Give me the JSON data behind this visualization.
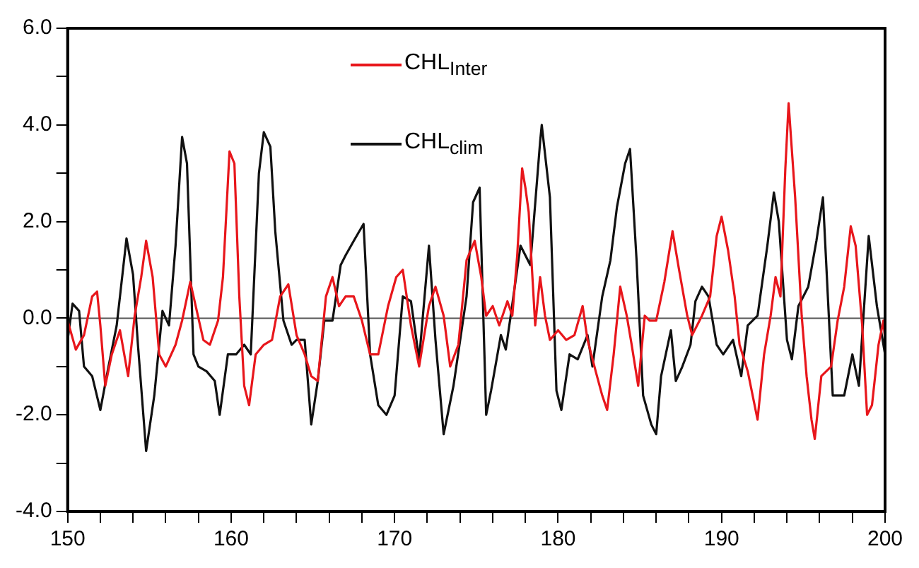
{
  "chart_data": {
    "type": "line",
    "legend": "top",
    "marker": "none",
    "line_style": "solid",
    "grid": false,
    "xlim": [
      150,
      200
    ],
    "xticks": [
      150,
      {
        "value": 152,
        "label": null
      },
      {
        "value": 154,
        "label": null
      },
      {
        "value": 156,
        "label": null
      },
      {
        "value": 158,
        "label": null
      },
      160,
      {
        "value": 162,
        "label": null
      },
      {
        "value": 164,
        "label": null
      },
      {
        "value": 166,
        "label": null
      },
      {
        "value": 168,
        "label": null
      },
      170,
      {
        "value": 172,
        "label": null
      },
      {
        "value": 174,
        "label": null
      },
      {
        "value": 176,
        "label": null
      },
      {
        "value": 178,
        "label": null
      },
      180,
      {
        "value": 182,
        "label": null
      },
      {
        "value": 184,
        "label": null
      },
      {
        "value": 186,
        "label": null
      },
      {
        "value": 188,
        "label": null
      },
      190,
      {
        "value": 192,
        "label": null
      },
      {
        "value": 194,
        "label": null
      },
      {
        "value": 196,
        "label": null
      },
      {
        "value": 198,
        "label": null
      },
      200
    ],
    "ylim": [
      -4,
      6
    ],
    "yticks": [
      {
        "value": -4,
        "label": "-4.0"
      },
      {
        "value": -3,
        "label": null
      },
      {
        "value": -2,
        "label": "-2.0"
      },
      {
        "value": -1,
        "label": null
      },
      {
        "value": 0,
        "label": "0.0"
      },
      {
        "value": 1,
        "label": null
      },
      {
        "value": 2,
        "label": "2.0"
      },
      {
        "value": 3,
        "label": null
      },
      {
        "value": 4,
        "label": "4.0"
      },
      {
        "value": 5,
        "label": null
      },
      {
        "value": 6,
        "label": "6.0"
      }
    ],
    "ref_lines": [
      {
        "axis": "y",
        "value": 0,
        "color": "#555555"
      }
    ],
    "series": [
      {
        "name": "CHL$_{Inter}$",
        "color": "#e8161b",
        "x": [
          150,
          150.5,
          151,
          151.5,
          151.8,
          152,
          152.3,
          152.7,
          153.2,
          153.7,
          154.1,
          154.5,
          154.8,
          155.2,
          155.6,
          156,
          156.6,
          157,
          157.5,
          157.9,
          158.3,
          158.7,
          159.2,
          159.5,
          159.9,
          160.2,
          160.5,
          160.8,
          161.1,
          161.5,
          162,
          162.5,
          163,
          163.5,
          164,
          164.5,
          164.9,
          165.3,
          165.8,
          166.2,
          166.6,
          167,
          167.5,
          168,
          168.5,
          169,
          169.6,
          170.1,
          170.5,
          171,
          171.5,
          172.1,
          172.5,
          173,
          173.4,
          173.9,
          174.4,
          174.9,
          175.3,
          175.6,
          176,
          176.4,
          176.9,
          177.2,
          177.5,
          177.8,
          178,
          178.2,
          178.6,
          178.9,
          179.2,
          179.5,
          180,
          180.5,
          181,
          181.5,
          181.8,
          182.3,
          182.7,
          183,
          183.4,
          183.8,
          184.2,
          184.5,
          184.9,
          185.3,
          185.6,
          186,
          186.5,
          187,
          187.4,
          187.9,
          188.2,
          188.8,
          189.3,
          189.7,
          190,
          190.4,
          190.8,
          191.1,
          191.6,
          192.2,
          192.6,
          193,
          193.3,
          193.6,
          193.9,
          194.1,
          194.5,
          194.9,
          195.2,
          195.5,
          195.7,
          196.1,
          196.7,
          197.1,
          197.5,
          197.9,
          198.2,
          198.6,
          198.9,
          199.2,
          199.6,
          199.9,
          200
        ],
        "values": [
          -0.05,
          -0.65,
          -0.35,
          0.45,
          0.55,
          -0.15,
          -1.4,
          -0.75,
          -0.25,
          -1.2,
          0.05,
          0.85,
          1.6,
          0.85,
          -0.75,
          -1.0,
          -0.55,
          -0.05,
          0.75,
          0.15,
          -0.45,
          -0.55,
          -0.05,
          0.85,
          3.45,
          3.2,
          0.45,
          -1.4,
          -1.8,
          -0.75,
          -0.55,
          -0.45,
          0.45,
          0.7,
          -0.35,
          -0.75,
          -1.2,
          -1.3,
          0.45,
          0.85,
          0.25,
          0.45,
          0.45,
          -0.05,
          -0.75,
          -0.75,
          0.25,
          0.85,
          1.0,
          -0.15,
          -1.0,
          0.25,
          0.65,
          0.05,
          -1.0,
          -0.55,
          1.2,
          1.6,
          0.85,
          0.05,
          0.25,
          -0.15,
          0.35,
          0.05,
          1.3,
          3.1,
          2.7,
          2.2,
          -0.15,
          0.85,
          0.05,
          -0.45,
          -0.25,
          -0.45,
          -0.35,
          0.25,
          -0.45,
          -1.1,
          -1.6,
          -1.9,
          -0.75,
          0.65,
          0.05,
          -0.55,
          -1.4,
          0.05,
          -0.05,
          -0.05,
          0.75,
          1.8,
          1.0,
          0.05,
          -0.35,
          0.05,
          0.45,
          1.7,
          2.1,
          1.4,
          0.45,
          -0.55,
          -1.1,
          -2.1,
          -0.75,
          0.05,
          0.85,
          0.45,
          3.1,
          4.45,
          2.5,
          0.05,
          -1.2,
          -2.1,
          -2.5,
          -1.2,
          -1.0,
          -0.05,
          0.65,
          1.9,
          1.5,
          -0.15,
          -2.0,
          -1.8,
          -0.55,
          -0.05,
          -0.45
        ]
      },
      {
        "name": "CHL$_{clim}$",
        "color": "#111111",
        "x": [
          150,
          150.3,
          150.7,
          151,
          151.5,
          152,
          152.5,
          153,
          153.6,
          154,
          154.3,
          154.8,
          155.3,
          155.8,
          156.2,
          156.6,
          157,
          157.3,
          157.7,
          158,
          158.5,
          159,
          159.3,
          159.8,
          160.3,
          160.8,
          161.2,
          161.7,
          162,
          162.4,
          162.7,
          163.2,
          163.7,
          164,
          164.5,
          164.9,
          165.3,
          165.7,
          166.2,
          166.7,
          167,
          167.5,
          168.1,
          168.5,
          169,
          169.5,
          170,
          170.5,
          171,
          171.5,
          172.1,
          172.5,
          173,
          173.6,
          174.4,
          174.8,
          175.2,
          175.6,
          175.9,
          176.5,
          176.8,
          177.1,
          177.7,
          178.3,
          178.9,
          179,
          179.5,
          179.9,
          180.2,
          180.7,
          181.2,
          181.8,
          182.1,
          182.7,
          183.2,
          183.6,
          184.1,
          184.4,
          184.8,
          185.2,
          185.7,
          186,
          186.3,
          186.9,
          187.2,
          187.6,
          188.1,
          188.4,
          188.8,
          189.2,
          189.7,
          190.1,
          190.7,
          191.2,
          191.6,
          192.2,
          192.8,
          193.2,
          193.5,
          194,
          194.3,
          194.7,
          195.3,
          195.8,
          196.2,
          196.5,
          196.8,
          197.5,
          198,
          198.4,
          199,
          199.5,
          200
        ],
        "values": [
          -0.45,
          0.3,
          0.15,
          -1.0,
          -1.2,
          -1.9,
          -1.0,
          -0.15,
          1.65,
          0.9,
          -0.55,
          -2.75,
          -1.6,
          0.15,
          -0.15,
          1.5,
          3.75,
          3.2,
          -0.75,
          -1.0,
          -1.1,
          -1.3,
          -2.0,
          -0.75,
          -0.75,
          -0.55,
          -0.75,
          3.0,
          3.85,
          3.55,
          1.8,
          -0.05,
          -0.55,
          -0.45,
          -0.45,
          -2.2,
          -1.3,
          -0.05,
          -0.05,
          1.1,
          1.3,
          1.6,
          1.95,
          -0.75,
          -1.8,
          -2.0,
          -1.6,
          0.45,
          0.35,
          -0.85,
          1.5,
          -0.45,
          -2.4,
          -1.4,
          0.45,
          2.4,
          2.7,
          -2.0,
          -1.5,
          -0.35,
          -0.65,
          0.05,
          1.5,
          1.1,
          3.65,
          4.0,
          2.5,
          -1.5,
          -1.9,
          -0.75,
          -0.85,
          -0.35,
          -1.0,
          0.45,
          1.2,
          2.3,
          3.2,
          3.5,
          1.2,
          -1.6,
          -2.2,
          -2.4,
          -1.2,
          -0.25,
          -1.3,
          -1.0,
          -0.55,
          0.35,
          0.65,
          0.45,
          -0.55,
          -0.75,
          -0.45,
          -1.2,
          -0.15,
          0.05,
          1.5,
          2.6,
          2.0,
          -0.45,
          -0.85,
          0.25,
          0.65,
          1.6,
          2.5,
          0.45,
          -1.6,
          -1.6,
          -0.75,
          -1.4,
          1.7,
          0.25,
          -0.75
        ]
      }
    ]
  }
}
